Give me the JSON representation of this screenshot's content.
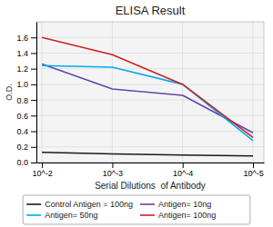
{
  "chart_data": {
    "type": "line",
    "title": "ELISA Result",
    "x_label": "Serial Dilutions  of Antibody",
    "y_label": "O.D.",
    "x": [
      0.01,
      0.001,
      0.0001,
      1e-05
    ],
    "series": [
      {
        "name": "Control Antigen = 100ng",
        "color": "#1a1a1a",
        "values": [
          0.13,
          0.11,
          0.095,
          0.085
        ]
      },
      {
        "name": "Antigen= 10ng",
        "color": "#6644AA",
        "values": [
          1.26,
          0.94,
          0.86,
          0.38
        ]
      },
      {
        "name": "Antigen= 50ng",
        "color": "#00AAEE",
        "values": [
          1.24,
          1.22,
          1.0,
          0.28
        ]
      },
      {
        "name": "Antigen= 100ng",
        "color": "#CC2222",
        "values": [
          1.6,
          1.38,
          1.0,
          0.32
        ]
      }
    ],
    "log": "x",
    "xlim": [
      0.012,
      7e-06
    ],
    "xticks": [
      {
        "value": 0.01,
        "label": "10^-2"
      },
      {
        "value": 0.001,
        "label": "10^-3"
      },
      {
        "value": 0.0001,
        "label": "10^-4"
      },
      {
        "value": 1e-05,
        "label": "10^-5"
      }
    ],
    "ylim": [
      0,
      1.8
    ],
    "yticks": [
      {
        "value": 0,
        "label": "0.0"
      },
      0.2,
      0.4,
      0.6,
      0.8,
      {
        "value": 1.0,
        "label": "1.0"
      },
      1.2,
      1.4,
      1.6
    ],
    "grid": true,
    "legend": "bottom"
  }
}
